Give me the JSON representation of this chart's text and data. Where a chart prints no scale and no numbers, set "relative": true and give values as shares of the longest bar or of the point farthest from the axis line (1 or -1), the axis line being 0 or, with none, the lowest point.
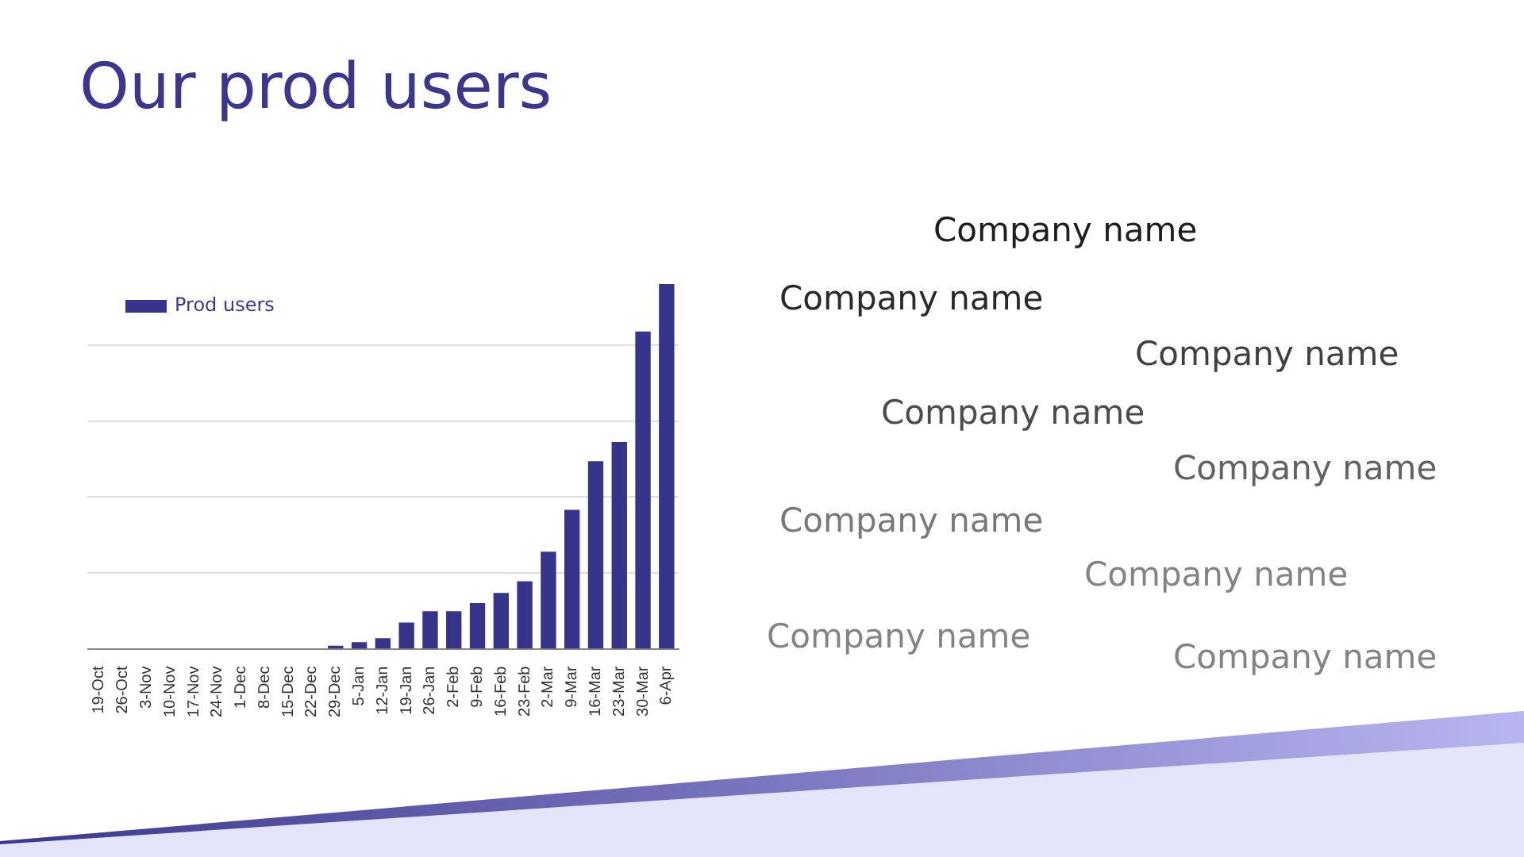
{
  "chart_data": {
    "type": "bar",
    "title": "Our prod users",
    "relative": true,
    "grid": "y",
    "legend": "top left",
    "categories": [
      "19-Oct",
      "26-Oct",
      "3-Nov",
      "10-Nov",
      "17-Nov",
      "24-Nov",
      "1-Dec",
      "8-Dec",
      "15-Dec",
      "22-Dec",
      "29-Dec",
      "5-Jan",
      "12-Jan",
      "19-Jan",
      "26-Jan",
      "2-Feb",
      "9-Feb",
      "16-Feb",
      "23-Feb",
      "2-Mar",
      "9-Mar",
      "16-Mar",
      "23-Mar",
      "30-Mar",
      "6-Apr"
    ],
    "series": [
      {
        "name": "Prod users",
        "color": "#35348a",
        "values": [
          0,
          0,
          0,
          0,
          0,
          0,
          0,
          0,
          0,
          0,
          0.008,
          0.018,
          0.029,
          0.072,
          0.103,
          0.103,
          0.125,
          0.153,
          0.185,
          0.266,
          0.381,
          0.514,
          0.567,
          0.87,
          1
        ]
      }
    ],
    "annotations": [
      "Company name",
      "Company name",
      "Company name",
      "Company name",
      "Company name",
      "Company name",
      "Company name",
      "Company name",
      "Company name"
    ]
  }
}
